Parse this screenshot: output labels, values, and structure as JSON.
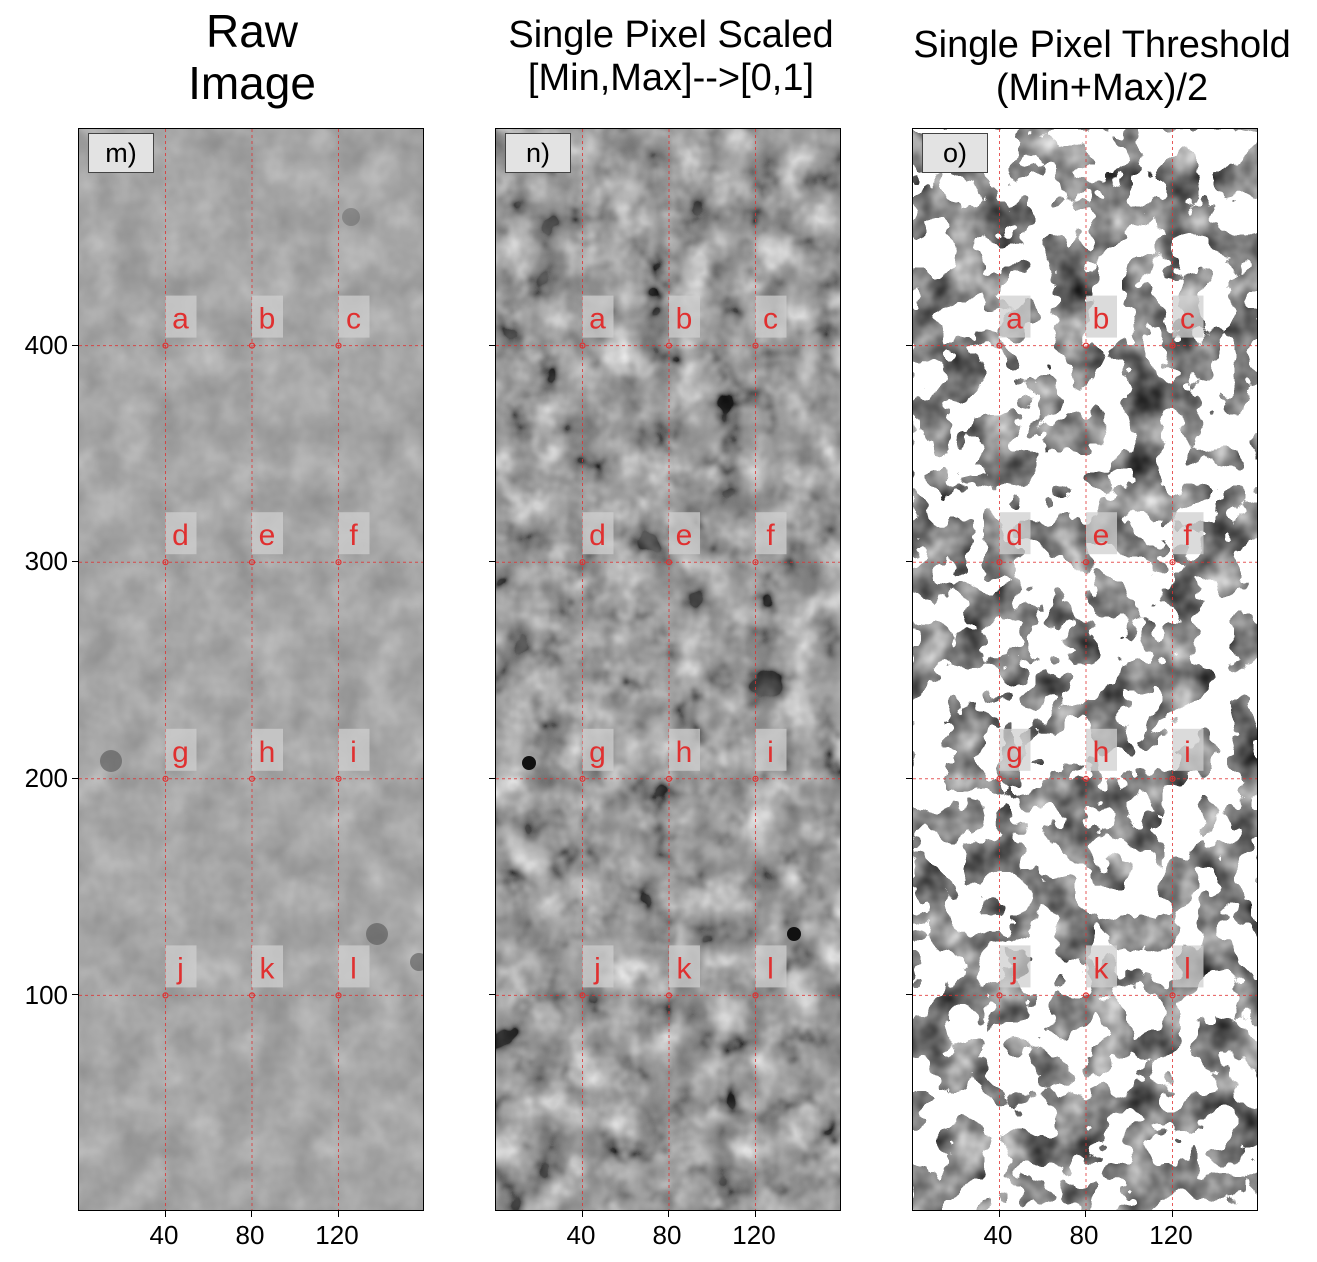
{
  "panels": [
    {
      "id": "m",
      "title_lines": [
        "Raw",
        "Image"
      ],
      "label": "m)",
      "style": "raw"
    },
    {
      "id": "n",
      "title_lines": [
        "Single Pixel Scaled",
        "[Min,Max]-->[0,1]"
      ],
      "label": "n)",
      "style": "scaled"
    },
    {
      "id": "o",
      "title_lines": [
        "Single Pixel Threshold",
        "(Min+Max)/2"
      ],
      "label": "o)",
      "style": "threshold"
    }
  ],
  "axes": {
    "x_ticks": [
      "40",
      "80",
      "120"
    ],
    "y_ticks": [
      "400",
      "300",
      "200",
      "100"
    ],
    "x_range": [
      0,
      160
    ],
    "y_range": [
      0,
      500
    ]
  },
  "points": [
    {
      "label": "a",
      "x": 40,
      "y": 400
    },
    {
      "label": "b",
      "x": 80,
      "y": 400
    },
    {
      "label": "c",
      "x": 120,
      "y": 400
    },
    {
      "label": "d",
      "x": 40,
      "y": 300
    },
    {
      "label": "e",
      "x": 80,
      "y": 300
    },
    {
      "label": "f",
      "x": 120,
      "y": 300
    },
    {
      "label": "g",
      "x": 40,
      "y": 200
    },
    {
      "label": "h",
      "x": 80,
      "y": 200
    },
    {
      "label": "i",
      "x": 120,
      "y": 200
    },
    {
      "label": "j",
      "x": 40,
      "y": 100
    },
    {
      "label": "k",
      "x": 80,
      "y": 100
    },
    {
      "label": "l",
      "x": 120,
      "y": 100
    }
  ],
  "colors": {
    "marker": "#e03030",
    "raw_gray": "#8a8a8a"
  }
}
